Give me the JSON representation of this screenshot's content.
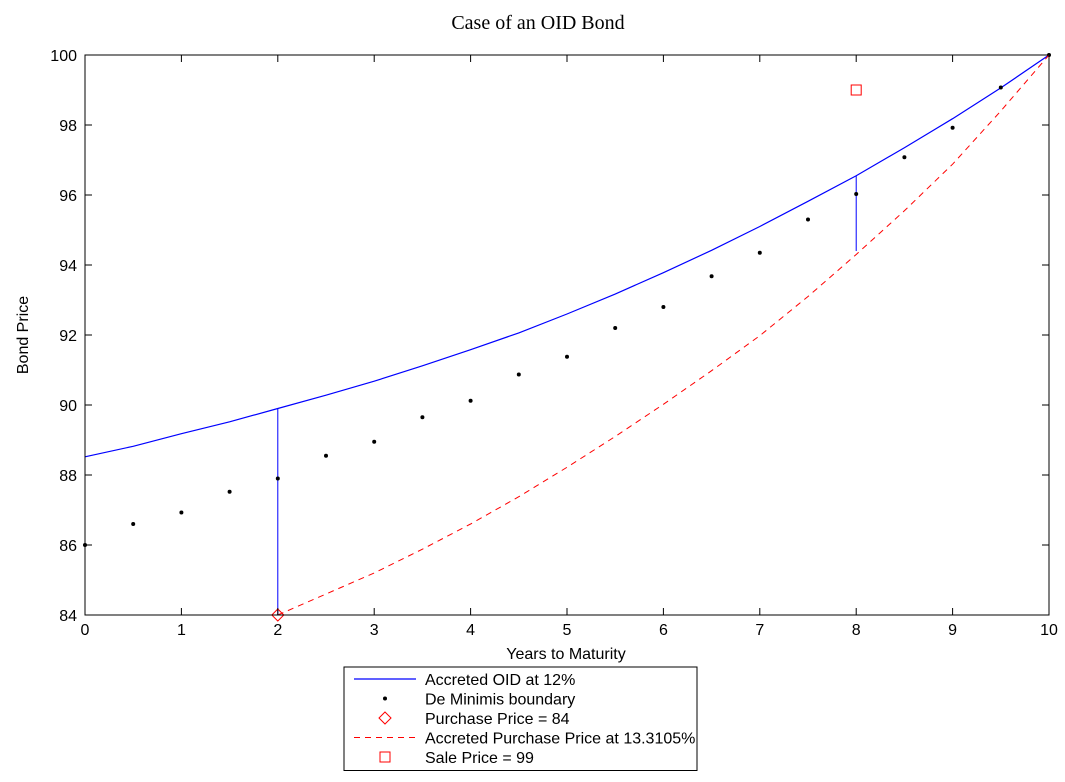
{
  "chart_data": {
    "type": "line",
    "title": "Case of an OID Bond",
    "xlabel": "Years to Maturity",
    "ylabel": "Bond Price",
    "xlim": [
      0,
      10
    ],
    "ylim": [
      84,
      100
    ],
    "xticks": [
      "0",
      "1",
      "2",
      "3",
      "4",
      "5",
      "6",
      "7",
      "8",
      "9",
      "10"
    ],
    "yticks": [
      "84",
      "86",
      "88",
      "90",
      "92",
      "94",
      "96",
      "98",
      "100"
    ],
    "grid": false,
    "legend_position": "below plot",
    "series": [
      {
        "name": "Accreted OID at 12%",
        "style": "solid-line",
        "color": "#0000ff",
        "x": [
          0,
          0.5,
          1,
          1.5,
          2,
          2.5,
          3,
          3.5,
          4,
          4.5,
          5,
          5.5,
          6,
          6.5,
          7,
          7.5,
          8,
          8.5,
          9,
          9.5,
          10
        ],
        "y": [
          88.52,
          88.82,
          89.18,
          89.52,
          89.9,
          90.28,
          90.68,
          91.12,
          91.58,
          92.06,
          92.6,
          93.17,
          93.78,
          94.42,
          95.1,
          95.82,
          96.55,
          97.35,
          98.18,
          99.06,
          100
        ]
      },
      {
        "name": "De Minimis boundary",
        "style": "dots",
        "color": "#000000",
        "x": [
          0,
          0.5,
          1,
          1.5,
          2,
          2.5,
          3,
          3.5,
          4,
          4.5,
          5,
          5.5,
          6,
          6.5,
          7,
          7.5,
          8,
          8.5,
          9,
          9.5,
          10
        ],
        "y": [
          86.0,
          86.6,
          86.93,
          87.52,
          87.9,
          88.55,
          88.95,
          89.65,
          90.12,
          90.87,
          91.38,
          92.2,
          92.8,
          93.68,
          94.35,
          95.3,
          96.03,
          97.08,
          97.92,
          99.07,
          100
        ]
      },
      {
        "name": "Purchase Price = 84",
        "style": "diamond",
        "color": "#ff0000",
        "x": [
          2
        ],
        "y": [
          84
        ]
      },
      {
        "name": "Accreted Purchase Price at 13.3105%",
        "style": "dashed-line",
        "color": "#ff0000",
        "x": [
          2,
          2.5,
          3,
          3.5,
          4,
          4.5,
          5,
          5.5,
          6,
          6.5,
          7,
          7.5,
          8,
          8.5,
          9,
          9.5,
          10
        ],
        "y": [
          84.0,
          84.6,
          85.2,
          85.88,
          86.6,
          87.38,
          88.22,
          89.1,
          90.02,
          90.98,
          91.98,
          93.1,
          94.3,
          95.55,
          96.88,
          98.4,
          100
        ]
      },
      {
        "name": "Sale Price = 99",
        "style": "square",
        "color": "#ff0000",
        "x": [
          8
        ],
        "y": [
          99
        ]
      }
    ],
    "annotations": [
      {
        "type": "vertical-line",
        "color": "#0000ff",
        "x": 2,
        "y_from": 84,
        "y_to": 89.9
      },
      {
        "type": "vertical-line",
        "color": "#0000ff",
        "x": 8,
        "y_from": 94.4,
        "y_to": 96.55
      }
    ]
  }
}
